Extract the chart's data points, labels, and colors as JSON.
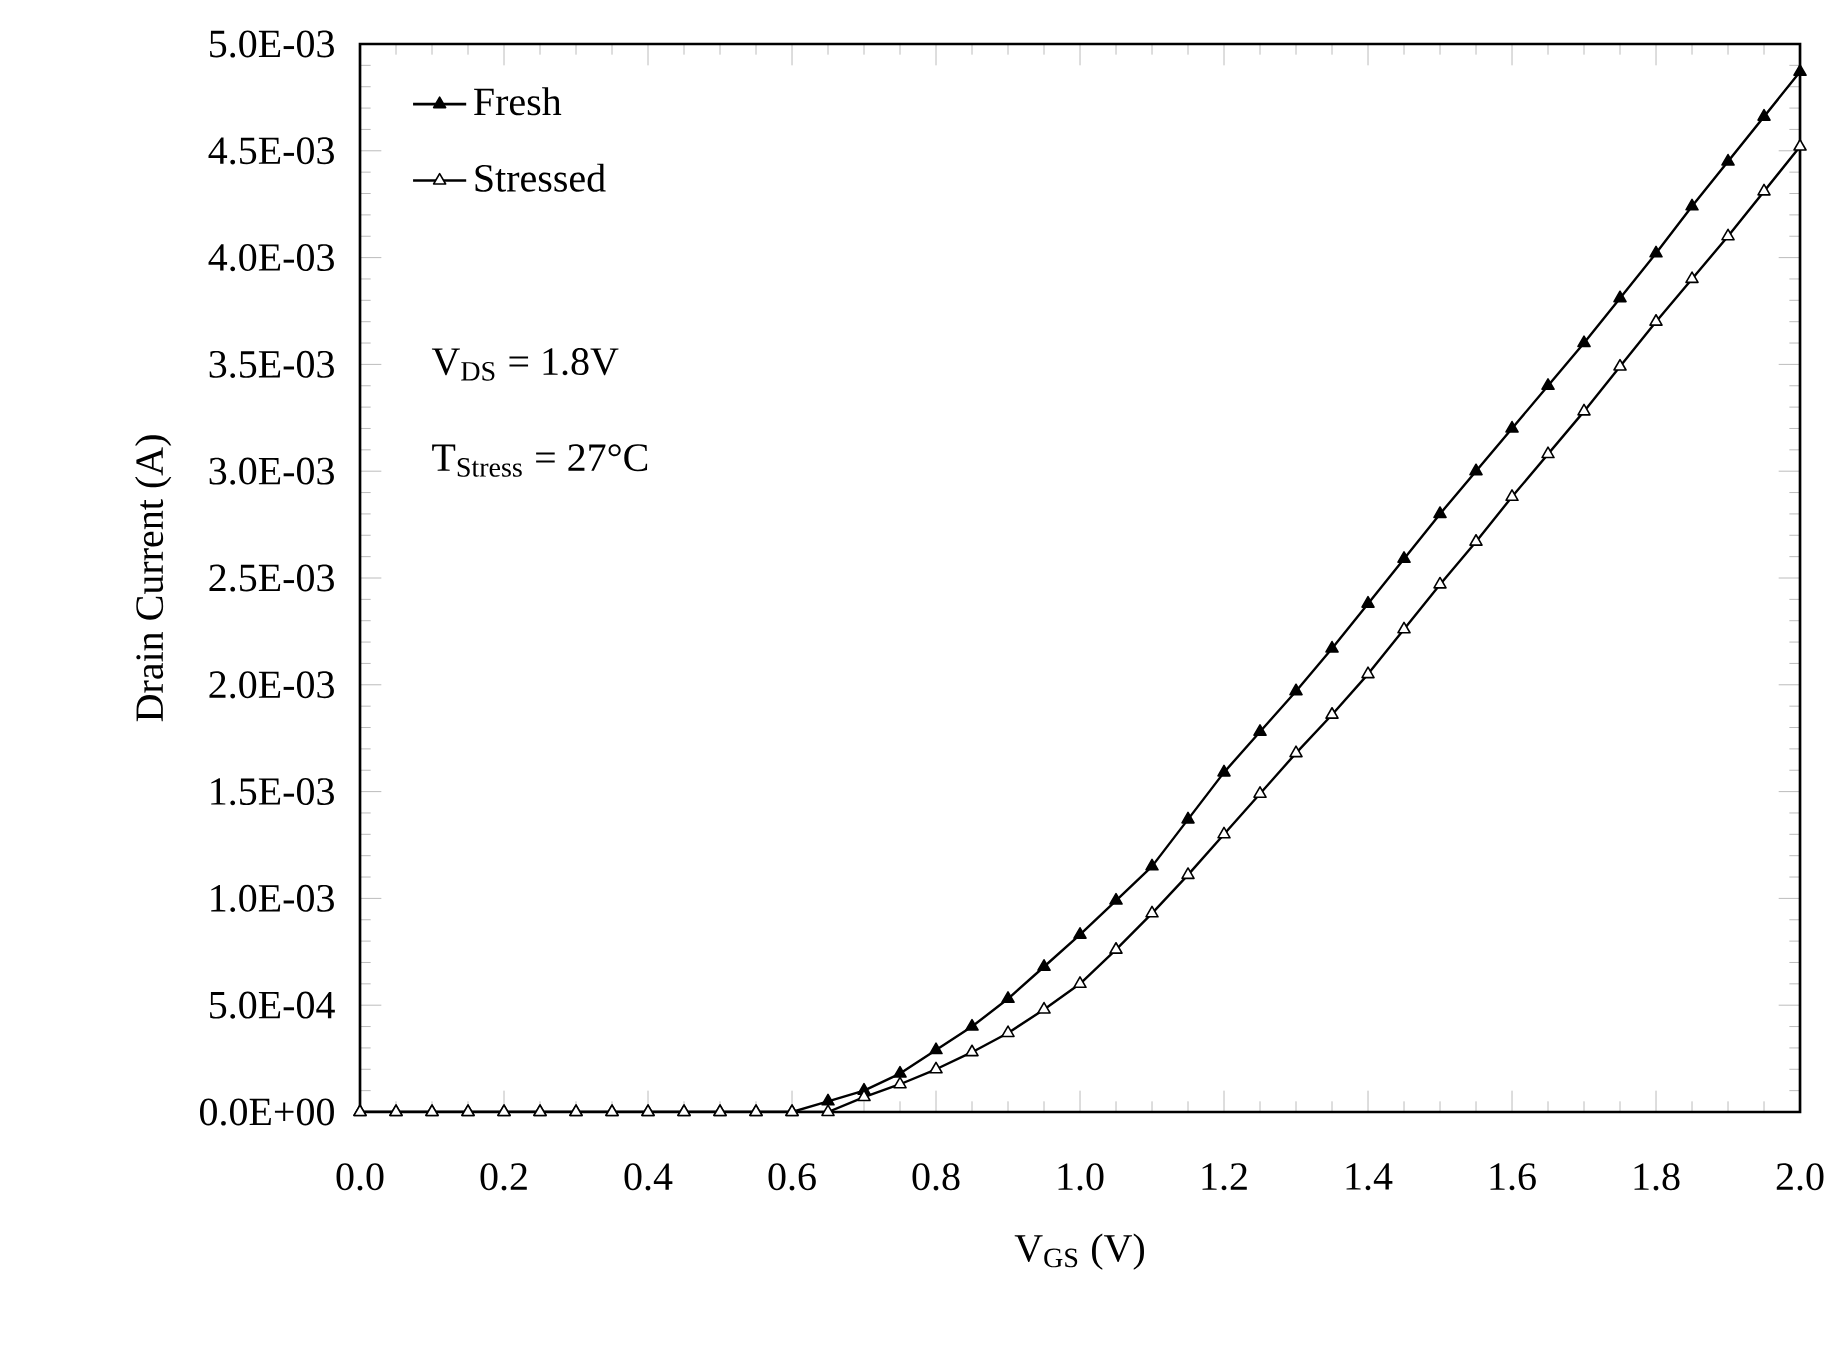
{
  "chart_data": {
    "type": "line",
    "xlabel": "V$_{GS}$ (V)",
    "ylabel": "Drain Current (A)",
    "x": [
      0.0,
      0.05,
      0.1,
      0.15,
      0.2,
      0.25,
      0.3,
      0.35,
      0.4,
      0.45,
      0.5,
      0.55,
      0.6,
      0.65,
      0.7,
      0.75,
      0.8,
      0.85,
      0.9,
      0.95,
      1.0,
      1.05,
      1.1,
      1.15,
      1.2,
      1.25,
      1.3,
      1.35,
      1.4,
      1.45,
      1.5,
      1.55,
      1.6,
      1.65,
      1.7,
      1.75,
      1.8,
      1.85,
      1.9,
      1.95,
      2.0
    ],
    "series": [
      {
        "name": "Fresh",
        "color": "#000000",
        "values": [
          0,
          0,
          0,
          0,
          0,
          0,
          0,
          0,
          0,
          0,
          0,
          0,
          0,
          5e-05,
          0.0001,
          0.00018,
          0.00029,
          0.0004,
          0.00053,
          0.00068,
          0.00083,
          0.00099,
          0.00115,
          0.00137,
          0.00159,
          0.00178,
          0.00197,
          0.00217,
          0.00238,
          0.00259,
          0.0028,
          0.003,
          0.0032,
          0.0034,
          0.0036,
          0.00381,
          0.00402,
          0.00424,
          0.00445,
          0.00466,
          0.00487
        ]
      },
      {
        "name": "Stressed",
        "color": "#000000",
        "values": [
          0,
          0,
          0,
          0,
          0,
          0,
          0,
          0,
          0,
          0,
          0,
          0,
          0,
          0,
          7e-05,
          0.00013,
          0.0002,
          0.00028,
          0.00037,
          0.00048,
          0.0006,
          0.00076,
          0.00093,
          0.00111,
          0.0013,
          0.00149,
          0.00168,
          0.00186,
          0.00205,
          0.00226,
          0.00247,
          0.00267,
          0.00288,
          0.00308,
          0.00328,
          0.00349,
          0.0037,
          0.0039,
          0.0041,
          0.00431,
          0.00452
        ]
      }
    ],
    "xlim": [
      0,
      2.0
    ],
    "xticks": [
      {
        "value": 0,
        "label": "0.0"
      },
      {
        "value": 0.2,
        "label": "0.2"
      },
      {
        "value": 0.4,
        "label": "0.4"
      },
      {
        "value": 0.6,
        "label": "0.6"
      },
      {
        "value": 0.8,
        "label": "0.8"
      },
      {
        "value": 1.0,
        "label": "1.0"
      },
      {
        "value": 1.2,
        "label": "1.2"
      },
      {
        "value": 1.4,
        "label": "1.4"
      },
      {
        "value": 1.6,
        "label": "1.6"
      },
      {
        "value": 1.8,
        "label": "1.8"
      },
      {
        "value": 2.0,
        "label": "2.0"
      }
    ],
    "ylim": [
      0,
      0.005
    ],
    "yticks": [
      {
        "value": 0,
        "label": "0.0E+00"
      },
      {
        "value": 0.0005,
        "label": "5.0E-04"
      },
      {
        "value": 0.001,
        "label": "1.0E-03"
      },
      {
        "value": 0.0015,
        "label": "1.5E-03"
      },
      {
        "value": 0.002,
        "label": "2.0E-03"
      },
      {
        "value": 0.0025,
        "label": "2.5E-03"
      },
      {
        "value": 0.003,
        "label": "3.0E-03"
      },
      {
        "value": 0.0035,
        "label": "3.5E-03"
      },
      {
        "value": 0.004,
        "label": "4.0E-03"
      },
      {
        "value": 0.0045,
        "label": "4.5E-03"
      },
      {
        "value": 0.005,
        "label": "5.0E-03"
      }
    ],
    "annotations": [
      "V$_{DS}$ = 1.8V",
      "T$_{Stress}$ = 27°C"
    ],
    "legend": "top left",
    "marker": "triangle",
    "grid": false,
    "line_style": "solid"
  }
}
